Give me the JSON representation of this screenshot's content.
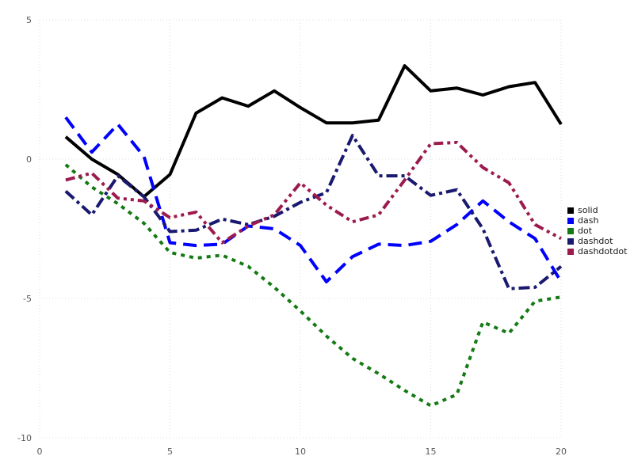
{
  "chart_data": {
    "type": "line",
    "title": "",
    "xlabel": "",
    "ylabel": "",
    "xlim": [
      0,
      20
    ],
    "ylim": [
      -10,
      5
    ],
    "x_ticks": [
      0,
      5,
      10,
      15,
      20
    ],
    "y_ticks": [
      5,
      0,
      -5,
      -10
    ],
    "grid": "dotted",
    "grid_color": "#dcdcdc",
    "tick_label_color": "#595959",
    "legend_position": "right-outside",
    "x": [
      1,
      2,
      3,
      4,
      5,
      6,
      7,
      8,
      9,
      10,
      11,
      12,
      13,
      14,
      15,
      16,
      17,
      18,
      19,
      20
    ],
    "series": [
      {
        "name": "solid",
        "line_style": "solid",
        "color": "#000000",
        "values": [
          0.8,
          0.0,
          -0.55,
          -1.35,
          -0.55,
          1.65,
          2.2,
          1.9,
          2.45,
          1.85,
          1.3,
          1.3,
          1.4,
          3.35,
          2.45,
          2.55,
          2.3,
          2.6,
          2.75,
          1.25
        ]
      },
      {
        "name": "dash",
        "line_style": "dash",
        "color": "#0000ff",
        "values": [
          1.5,
          0.25,
          1.25,
          0.1,
          -3.0,
          -3.1,
          -3.05,
          -2.4,
          -2.5,
          -3.1,
          -4.4,
          -3.5,
          -3.05,
          -3.1,
          -2.95,
          -2.35,
          -1.5,
          -2.25,
          -2.85,
          -4.4
        ]
      },
      {
        "name": "dot",
        "line_style": "dot",
        "color": "#147a14",
        "values": [
          -0.2,
          -1.0,
          -1.6,
          -2.3,
          -3.35,
          -3.55,
          -3.45,
          -3.85,
          -4.6,
          -5.45,
          -6.35,
          -7.15,
          -7.7,
          -8.3,
          -8.85,
          -8.45,
          -5.85,
          -6.25,
          -5.1,
          -4.95
        ]
      },
      {
        "name": "dashdot",
        "line_style": "dashdot",
        "color": "#191970",
        "values": [
          -1.15,
          -2.0,
          -0.6,
          -1.35,
          -2.6,
          -2.55,
          -2.15,
          -2.35,
          -2.05,
          -1.55,
          -1.2,
          0.85,
          -0.6,
          -0.6,
          -1.3,
          -1.1,
          -2.5,
          -4.65,
          -4.6,
          -3.85
        ]
      },
      {
        "name": "dashdotdot",
        "line_style": "dashdotdot",
        "color": "#9c1b4e",
        "values": [
          -0.75,
          -0.5,
          -1.4,
          -1.5,
          -2.1,
          -1.9,
          -3.0,
          -2.4,
          -2.0,
          -0.85,
          -1.65,
          -2.25,
          -2.0,
          -0.75,
          0.55,
          0.6,
          -0.3,
          -0.85,
          -2.35,
          -2.85
        ]
      }
    ]
  }
}
